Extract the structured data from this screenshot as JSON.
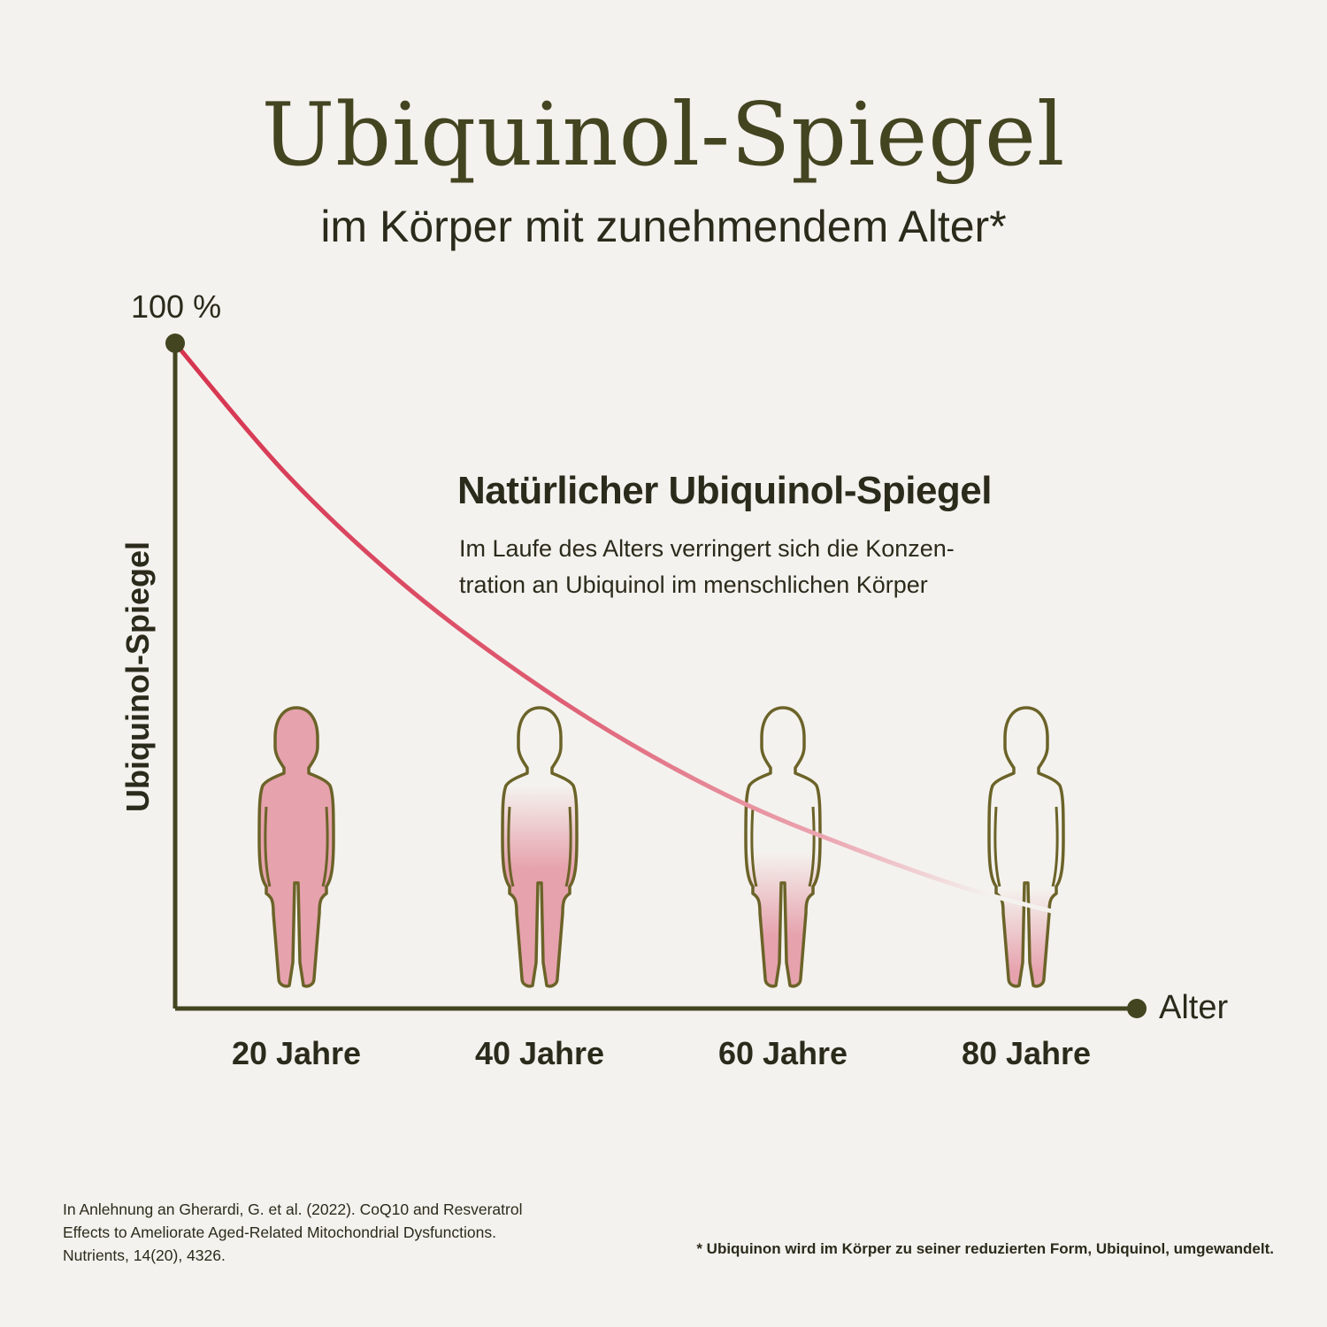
{
  "title": "Ubiquinol-Spiegel",
  "subtitle": "im Körper mit zunehmendem Alter*",
  "chart_data": {
    "type": "line",
    "title": "Ubiquinol-Spiegel",
    "subtitle": "im Körper mit zunehmendem Alter*",
    "ylabel": "Ubiquinol-Spiegel",
    "y_top_label": "100 %",
    "xlabel": "Alter",
    "categories": [
      "20 Jahre",
      "40 Jahre",
      "60 Jahre",
      "80 Jahre"
    ],
    "ylim": [
      0,
      100
    ],
    "series": [
      {
        "x": [
          0,
          10,
          20,
          30,
          40,
          50,
          60,
          70,
          80,
          85
        ],
        "values": [
          100,
          80,
          64,
          51,
          40,
          31,
          24,
          18,
          13.5,
          11
        ]
      }
    ],
    "figures": [
      {
        "category": "20 Jahre",
        "fill_level": 1.0
      },
      {
        "category": "40 Jahre",
        "fill_level": 0.72
      },
      {
        "category": "60 Jahre",
        "fill_level": 0.48
      },
      {
        "category": "80 Jahre",
        "fill_level": 0.35
      }
    ],
    "annotation": {
      "title": "Natürlicher Ubiquinol-Spiegel",
      "lines": [
        "Im Laufe des Alters verringert sich die Konzen-",
        "tration an Ubiquinol im menschlichen Körper"
      ]
    },
    "colors": {
      "curve": "#d6344f",
      "figure_fill": "#e6a2ad",
      "axis": "#434521",
      "figure_outline": "#6b6328"
    },
    "grid": false,
    "legend": "none"
  },
  "citation": [
    "In Anlehnung an Gherardi, G. et al. (2022). CoQ10 and Resveratrol",
    "Effects to Ameliorate Aged-Related Mitochondrial Dysfunctions.",
    "Nutrients, 14(20), 4326."
  ],
  "footnote": "* Ubiquinon wird im Körper zu seiner reduzierten Form, Ubiquinol, umgewandelt."
}
